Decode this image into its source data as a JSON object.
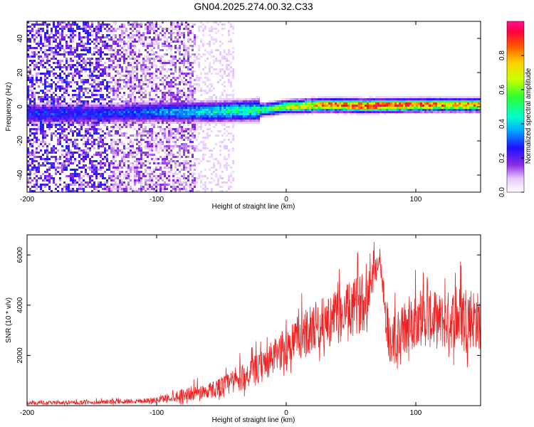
{
  "title": "GN04.2025.274.00.32.C33",
  "chart_data": [
    {
      "type": "heatmap",
      "title": "GN04.2025.274.00.32.C33",
      "xlabel": "Height of straight line (km)",
      "ylabel": "Frequency (Hz)",
      "xlim": [
        -200,
        150
      ],
      "ylim": [
        -50,
        50
      ],
      "xticks": [
        -200,
        -100,
        0,
        100
      ],
      "yticks": [
        -40,
        -20,
        0,
        20,
        40
      ],
      "colorbar": {
        "label": "Normalized spectral amplitude",
        "range": [
          0.0,
          1.0
        ],
        "ticks": [
          0.0,
          0.2,
          0.4,
          0.6,
          0.8
        ]
      },
      "ridge_center_hz": [
        {
          "x": -135,
          "y": -4
        },
        {
          "x": -100,
          "y": -3
        },
        {
          "x": -60,
          "y": -3
        },
        {
          "x": -20,
          "y": -2
        },
        {
          "x": 0,
          "y": 0
        },
        {
          "x": 30,
          "y": 1
        },
        {
          "x": 60,
          "y": 0.5
        },
        {
          "x": 100,
          "y": 1
        },
        {
          "x": 150,
          "y": 1
        }
      ],
      "ridge_peak_amplitude": [
        {
          "x": -135,
          "y": 0.3
        },
        {
          "x": -60,
          "y": 0.45
        },
        {
          "x": -20,
          "y": 0.55
        },
        {
          "x": 0,
          "y": 0.7
        },
        {
          "x": 40,
          "y": 0.95
        },
        {
          "x": 75,
          "y": 1.0
        },
        {
          "x": 110,
          "y": 0.9
        },
        {
          "x": 150,
          "y": 0.85
        }
      ]
    },
    {
      "type": "line",
      "xlabel": "Height of straight line (km)",
      "ylabel": "SNR (10 * v/v)",
      "xlim": [
        -200,
        150
      ],
      "ylim": [
        0,
        6800
      ],
      "xticks": [
        -200,
        -100,
        0,
        100
      ],
      "yticks": [
        2000,
        4000,
        6000
      ],
      "series": [
        {
          "name": "SNR",
          "color": "#ee2222",
          "envelope": [
            {
              "x": -200,
              "base": 80,
              "amp": 150
            },
            {
              "x": -150,
              "base": 100,
              "amp": 180
            },
            {
              "x": -100,
              "base": 180,
              "amp": 250
            },
            {
              "x": -80,
              "base": 350,
              "amp": 600
            },
            {
              "x": -60,
              "base": 500,
              "amp": 700
            },
            {
              "x": -40,
              "base": 800,
              "amp": 1100
            },
            {
              "x": -20,
              "base": 1300,
              "amp": 1400
            },
            {
              "x": 0,
              "base": 2100,
              "amp": 1800
            },
            {
              "x": 20,
              "base": 2800,
              "amp": 2200
            },
            {
              "x": 40,
              "base": 3200,
              "amp": 2400
            },
            {
              "x": 60,
              "base": 3800,
              "amp": 2600
            },
            {
              "x": 72,
              "base": 5800,
              "amp": 1000
            },
            {
              "x": 80,
              "base": 2000,
              "amp": 2500
            },
            {
              "x": 100,
              "base": 3200,
              "amp": 2600
            },
            {
              "x": 120,
              "base": 3000,
              "amp": 2500
            },
            {
              "x": 140,
              "base": 3200,
              "amp": 3000
            },
            {
              "x": 150,
              "base": 3000,
              "amp": 2500
            }
          ]
        }
      ]
    }
  ]
}
